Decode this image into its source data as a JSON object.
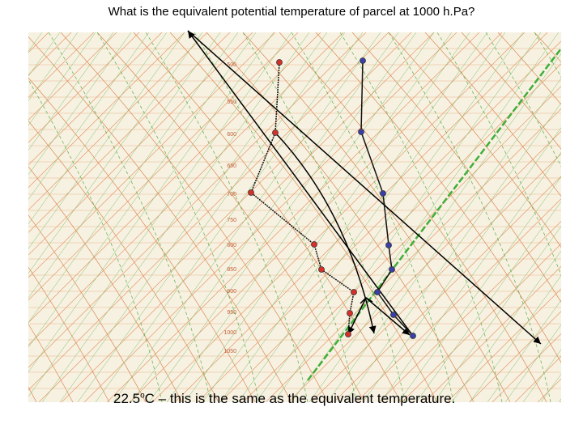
{
  "header": {
    "title": "What is the equivalent potential temperature of parcel at 1000 h.Pa?"
  },
  "diagram": {
    "pressure_labels": [
      "500",
      "550",
      "600",
      "650",
      "700",
      "750",
      "800",
      "850",
      "900",
      "950",
      "1000",
      "1050"
    ]
  },
  "caption": {
    "value": "22.5",
    "degree": "o",
    "text": "C – this is the same as the equivalent temperature."
  }
}
